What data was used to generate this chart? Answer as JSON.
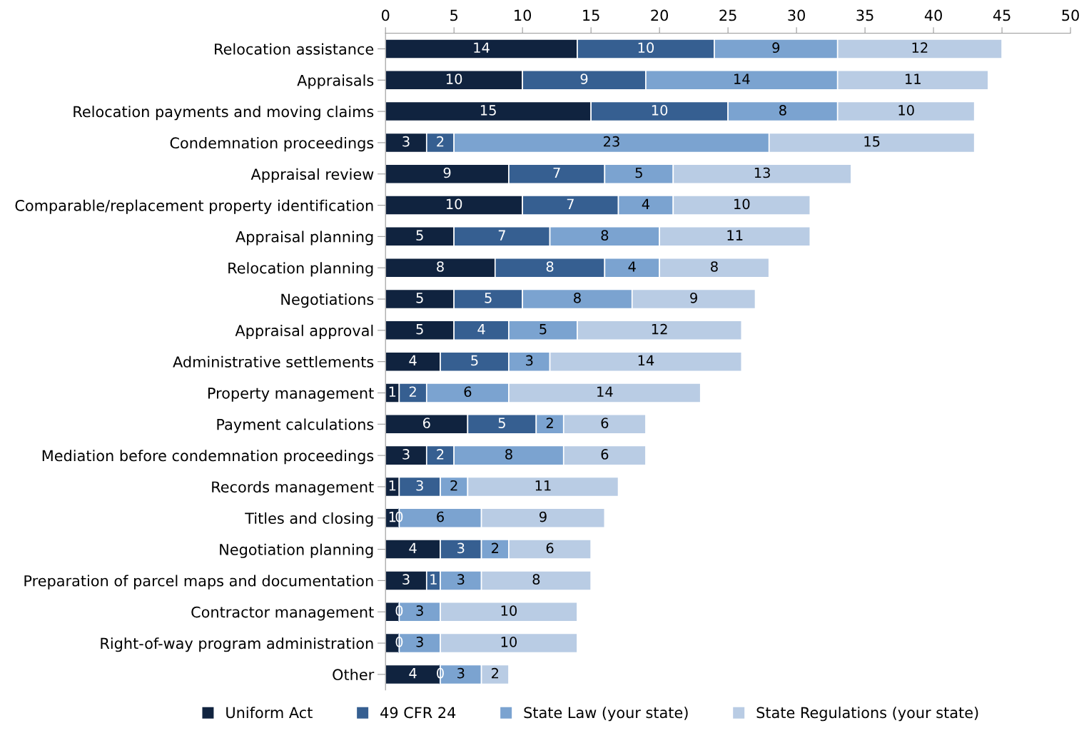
{
  "chart_data": {
    "type": "bar",
    "orientation": "horizontal",
    "stacked": true,
    "categories": [
      "Relocation assistance",
      "Appraisals",
      "Relocation payments and moving claims",
      "Condemnation proceedings",
      "Appraisal review",
      "Comparable/replacement property identification",
      "Appraisal planning",
      "Relocation planning",
      "Negotiations",
      "Appraisal approval",
      "Administrative settlements",
      "Property management",
      "Payment calculations",
      "Mediation before condemnation proceedings",
      "Records management",
      "Titles and closing",
      "Negotiation planning",
      "Preparation of parcel maps and documentation",
      "Contractor management",
      "Right-of-way program administration",
      "Other"
    ],
    "series": [
      {
        "name": "Uniform Act",
        "color": "#10233f",
        "values": [
          14,
          10,
          15,
          3,
          9,
          10,
          5,
          8,
          5,
          5,
          4,
          1,
          6,
          3,
          1,
          1,
          4,
          3,
          1,
          1,
          4
        ],
        "value_labels": [
          "14",
          "10",
          "15",
          "3",
          "9",
          "10",
          "5",
          "8",
          "5",
          "5",
          "4",
          "1",
          "6",
          "3",
          "1",
          "1",
          "4",
          "3",
          null,
          null,
          "4"
        ]
      },
      {
        "name": "49 CFR 24",
        "color": "#365f91",
        "values": [
          10,
          9,
          10,
          2,
          7,
          7,
          7,
          8,
          5,
          4,
          5,
          2,
          5,
          2,
          3,
          0,
          3,
          1,
          0,
          0,
          0
        ],
        "value_labels": [
          "10",
          "9",
          "10",
          "2",
          "7",
          "7",
          "7",
          "8",
          "5",
          "4",
          "5",
          "2",
          "5",
          "2",
          "3",
          "0",
          "3",
          "1",
          "0",
          "0",
          "0"
        ]
      },
      {
        "name": "State Law (your state)",
        "color": "#7ba3d0",
        "values": [
          9,
          14,
          8,
          23,
          5,
          4,
          8,
          4,
          8,
          5,
          3,
          6,
          2,
          8,
          2,
          6,
          2,
          3,
          3,
          3,
          3
        ],
        "value_labels": [
          "9",
          "14",
          "8",
          "23",
          "5",
          "4",
          "8",
          "4",
          "8",
          "5",
          "3",
          "6",
          "2",
          "8",
          "2",
          "6",
          "2",
          "3",
          "3",
          "3",
          "3"
        ]
      },
      {
        "name": "State Regulations (your state)",
        "color": "#b9cce4",
        "values": [
          12,
          11,
          10,
          15,
          13,
          10,
          11,
          8,
          9,
          12,
          14,
          14,
          6,
          6,
          11,
          9,
          6,
          8,
          10,
          10,
          2
        ],
        "value_labels": [
          "12",
          "11",
          "10",
          "15",
          "13",
          "10",
          "11",
          "8",
          "9",
          "12",
          "14",
          "14",
          "6",
          "6",
          "11",
          "9",
          "6",
          "8",
          "10",
          "10",
          "2"
        ]
      }
    ],
    "xlim": [
      0,
      50
    ],
    "xticks": [
      0,
      5,
      10,
      15,
      20,
      25,
      30,
      35,
      40,
      45,
      50
    ],
    "grid": false,
    "legend": "bottom"
  }
}
